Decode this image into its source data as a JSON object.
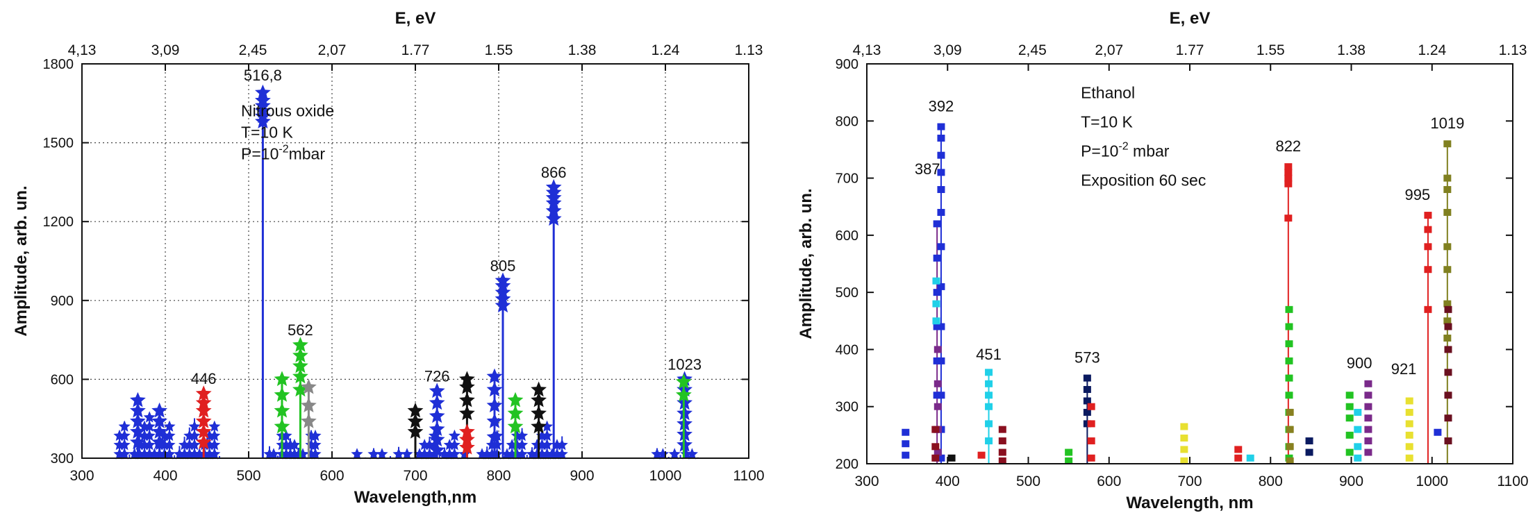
{
  "chart_data": [
    {
      "type": "scatter",
      "xlabel": "Wavelength,nm",
      "ylabel": "Amplitude, arb. un.",
      "top_axis_label": "E, eV",
      "xlim": [
        300,
        1100
      ],
      "ylim": [
        300,
        1800
      ],
      "x_ticks": [
        300,
        400,
        500,
        600,
        700,
        800,
        900,
        1000,
        1100
      ],
      "y_ticks": [
        300,
        600,
        900,
        1200,
        1500,
        1800
      ],
      "top_ticks": [
        {
          "label": "4,13",
          "wl": 300
        },
        {
          "label": "3,09",
          "wl": 400
        },
        {
          "label": "2,45",
          "wl": 505
        },
        {
          "label": "2,07",
          "wl": 600
        },
        {
          "label": "1.77",
          "wl": 700
        },
        {
          "label": "1.55",
          "wl": 800
        },
        {
          "label": "1.38",
          "wl": 900
        },
        {
          "label": "1.24",
          "wl": 1000
        },
        {
          "label": "1.13",
          "wl": 1100
        }
      ],
      "grid": true,
      "annotation_lines": [
        "Nitrous oxide",
        "T=10 K"
      ],
      "pressure": {
        "prefix": "P=10",
        "sup": "-2",
        "suffix": "mbar"
      },
      "peak_labels": [
        {
          "text": "516,8",
          "x": 517,
          "y": 1700
        },
        {
          "text": "446",
          "x": 446,
          "y": 545
        },
        {
          "text": "562",
          "x": 562,
          "y": 730
        },
        {
          "text": "726",
          "x": 726,
          "y": 555
        },
        {
          "text": "805",
          "x": 805,
          "y": 975
        },
        {
          "text": "866",
          "x": 866,
          "y": 1330
        },
        {
          "text": "1023",
          "x": 1023,
          "y": 600
        }
      ],
      "peaks": [
        {
          "x": 517,
          "values": [
            1690,
            1660,
            1640,
            1620,
            1600,
            1580
          ],
          "color": "#1f2fd6"
        },
        {
          "x": 866,
          "values": [
            1330,
            1310,
            1290,
            1270,
            1240,
            1210
          ],
          "color": "#1f2fd6"
        },
        {
          "x": 805,
          "values": [
            975,
            955,
            930,
            905,
            880
          ],
          "color": "#1f2fd6"
        },
        {
          "x": 562,
          "values": [
            730,
            690,
            650,
            610,
            560
          ],
          "color": "#22c322"
        },
        {
          "x": 1023,
          "values": [
            600,
            560,
            510,
            470,
            430,
            390,
            350
          ],
          "color": "#1f2fd6"
        },
        {
          "x": 446,
          "values": [
            545,
            510,
            480,
            440,
            400,
            360
          ],
          "color": "#e02020"
        },
        {
          "x": 726,
          "values": [
            555,
            510,
            460,
            410,
            370,
            330
          ],
          "color": "#1f2fd6"
        },
        {
          "x": 762,
          "values": [
            600,
            570,
            520,
            470
          ],
          "color": "#111111"
        },
        {
          "x": 848,
          "values": [
            560,
            520,
            470,
            420
          ],
          "color": "#111111"
        },
        {
          "x": 795,
          "values": [
            610,
            560,
            500,
            440,
            380
          ],
          "color": "#1f2fd6"
        },
        {
          "x": 367,
          "values": [
            520,
            480,
            440,
            400,
            360
          ],
          "color": "#1f2fd6"
        },
        {
          "x": 393,
          "values": [
            480,
            440,
            400,
            360
          ],
          "color": "#1f2fd6"
        },
        {
          "x": 540,
          "values": [
            600,
            540,
            480,
            420
          ],
          "color": "#22c322"
        },
        {
          "x": 572,
          "values": [
            570,
            500,
            440
          ],
          "color": "#888888"
        },
        {
          "x": 700,
          "values": [
            480,
            440,
            400
          ],
          "color": "#111111"
        },
        {
          "x": 762,
          "values": [
            400,
            370,
            340
          ],
          "color": "#e02020"
        },
        {
          "x": 820,
          "values": [
            520,
            470,
            420
          ],
          "color": "#22c322"
        },
        {
          "x": 1022,
          "values": [
            590,
            540
          ],
          "color": "#22c322"
        }
      ],
      "clusters": [
        {
          "x_start": 345,
          "x_end": 470,
          "step": 6,
          "max": 460,
          "color": "#1f2fd6"
        },
        {
          "x_start": 525,
          "x_end": 580,
          "step": 5,
          "max": 420,
          "color": "#1f2fd6"
        },
        {
          "x_start": 630,
          "x_end": 690,
          "step": 10,
          "max": 350,
          "color": "#1f2fd6"
        },
        {
          "x_start": 705,
          "x_end": 760,
          "step": 6,
          "max": 420,
          "color": "#1f2fd6"
        },
        {
          "x_start": 780,
          "x_end": 880,
          "step": 6,
          "max": 430,
          "color": "#1f2fd6"
        },
        {
          "x_start": 990,
          "x_end": 1045,
          "step": 7,
          "max": 340,
          "color": "#1f2fd6"
        }
      ]
    },
    {
      "type": "scatter",
      "xlabel": "Wavelength, nm",
      "ylabel": "Amplitude, arb. un.",
      "top_axis_label": "E, eV",
      "xlim": [
        300,
        1100
      ],
      "ylim": [
        200,
        900
      ],
      "x_ticks": [
        300,
        400,
        500,
        600,
        700,
        800,
        900,
        1000,
        1100
      ],
      "y_ticks": [
        200,
        300,
        400,
        500,
        600,
        700,
        800,
        900
      ],
      "top_ticks": [
        {
          "label": "4,13",
          "wl": 300
        },
        {
          "label": "3,09",
          "wl": 400
        },
        {
          "label": "2,45",
          "wl": 505
        },
        {
          "label": "2,07",
          "wl": 600
        },
        {
          "label": "1.77",
          "wl": 700
        },
        {
          "label": "1.55",
          "wl": 800
        },
        {
          "label": "1.38",
          "wl": 900
        },
        {
          "label": "1.24",
          "wl": 1000
        },
        {
          "label": "1.13",
          "wl": 1100
        }
      ],
      "grid": false,
      "annotation_lines": [
        "Ethanol",
        "T=10 K"
      ],
      "pressure": {
        "prefix": "P=10",
        "sup": "-2",
        "suffix": " mbar"
      },
      "annotation_extra": "Exposition 60 sec",
      "peak_labels": [
        {
          "text": "392",
          "x": 392,
          "y": 800
        },
        {
          "text": "387",
          "x": 375,
          "y": 690
        },
        {
          "text": "451",
          "x": 451,
          "y": 365
        },
        {
          "text": "573",
          "x": 573,
          "y": 360
        },
        {
          "text": "822",
          "x": 822,
          "y": 730
        },
        {
          "text": "900",
          "x": 910,
          "y": 350
        },
        {
          "text": "921",
          "x": 965,
          "y": 340
        },
        {
          "text": "995",
          "x": 982,
          "y": 645
        },
        {
          "text": "1019",
          "x": 1019,
          "y": 770
        }
      ],
      "peaks": [
        {
          "x": 392,
          "values": [
            790,
            770,
            740,
            710,
            680,
            640,
            580,
            510,
            440,
            380,
            320,
            260,
            210
          ],
          "color": "#1f2fd6"
        },
        {
          "x": 387,
          "values": [
            620,
            560,
            500,
            440,
            380,
            320,
            260,
            210
          ],
          "color": "#1f2fd6"
        },
        {
          "x": 386,
          "values": [
            520,
            480,
            450
          ],
          "color": "#20d0e8"
        },
        {
          "x": 388,
          "values": [
            400,
            340,
            300,
            260,
            220
          ],
          "color": "#7a2a8a"
        },
        {
          "x": 385,
          "values": [
            260,
            230,
            210
          ],
          "color": "#8a1020"
        },
        {
          "x": 451,
          "values": [
            360,
            340,
            320,
            300,
            270,
            240
          ],
          "color": "#20d0e8"
        },
        {
          "x": 468,
          "values": [
            260,
            240,
            220,
            205
          ],
          "color": "#8a1020"
        },
        {
          "x": 573,
          "values": [
            350,
            330,
            310,
            290,
            270
          ],
          "color": "#0a1a60"
        },
        {
          "x": 578,
          "values": [
            300,
            270,
            240,
            210
          ],
          "color": "#e02020"
        },
        {
          "x": 822,
          "values": [
            720,
            710,
            700,
            690,
            630
          ],
          "color": "#e02020"
        },
        {
          "x": 823,
          "values": [
            470,
            440,
            410,
            380,
            350,
            320,
            290,
            260,
            230,
            210
          ],
          "color": "#22c322"
        },
        {
          "x": 824,
          "values": [
            290,
            260,
            230,
            205
          ],
          "color": "#888020"
        },
        {
          "x": 995,
          "values": [
            635,
            610,
            580,
            540,
            470
          ],
          "color": "#e02020"
        },
        {
          "x": 1019,
          "values": [
            760,
            700,
            680,
            640,
            580,
            540,
            480,
            450,
            420
          ],
          "color": "#808020"
        },
        {
          "x": 1020,
          "values": [
            470,
            440,
            400,
            360,
            320,
            280,
            240
          ],
          "color": "#6a1020"
        },
        {
          "x": 921,
          "values": [
            340,
            320,
            300,
            280,
            260,
            240,
            220
          ],
          "color": "#7a2a8a"
        },
        {
          "x": 898,
          "values": [
            320,
            300,
            280,
            250,
            220
          ],
          "color": "#22c322"
        },
        {
          "x": 908,
          "values": [
            290,
            260,
            230,
            210
          ],
          "color": "#20d0e8"
        },
        {
          "x": 972,
          "values": [
            310,
            290,
            270,
            250,
            230,
            210
          ],
          "color": "#e8e030"
        },
        {
          "x": 693,
          "values": [
            265,
            245,
            225,
            205
          ],
          "color": "#e8e030"
        },
        {
          "x": 348,
          "values": [
            255,
            235,
            215
          ],
          "color": "#1f2fd6"
        },
        {
          "x": 550,
          "values": [
            220,
            205
          ],
          "color": "#22c322"
        },
        {
          "x": 760,
          "values": [
            225,
            210
          ],
          "color": "#e02020"
        },
        {
          "x": 848,
          "values": [
            240,
            220
          ],
          "color": "#0a1a60"
        },
        {
          "x": 1007,
          "values": [
            255
          ],
          "color": "#1f2fd6"
        },
        {
          "x": 442,
          "values": [
            215
          ],
          "color": "#e02020"
        },
        {
          "x": 405,
          "values": [
            210
          ],
          "color": "#111111"
        },
        {
          "x": 775,
          "values": [
            210
          ],
          "color": "#20d0e8"
        }
      ],
      "stem_lines": [
        {
          "x": 392,
          "top": 790,
          "color": "#1f2fd6"
        },
        {
          "x": 387,
          "top": 620,
          "color": "#7a2a8a"
        },
        {
          "x": 451,
          "top": 360,
          "color": "#20d0e8"
        },
        {
          "x": 573,
          "top": 350,
          "color": "#0a1a60"
        },
        {
          "x": 822,
          "top": 720,
          "color": "#e02020"
        },
        {
          "x": 995,
          "top": 635,
          "color": "#e02020"
        },
        {
          "x": 1019,
          "top": 760,
          "color": "#808020"
        }
      ]
    }
  ]
}
